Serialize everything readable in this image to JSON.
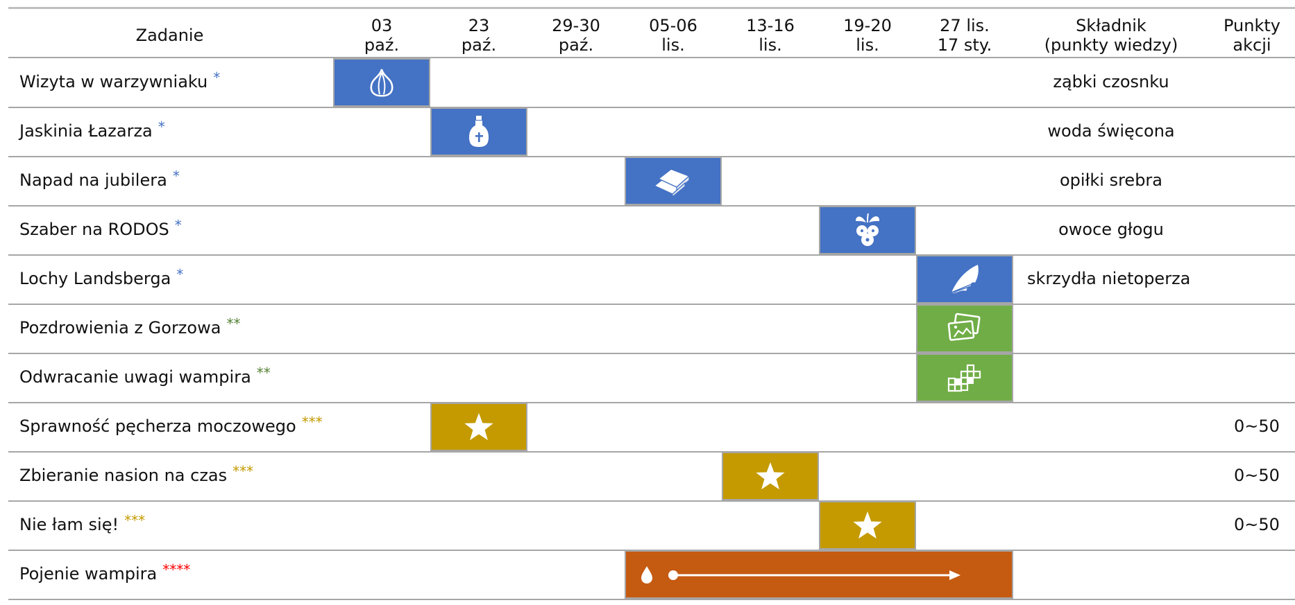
{
  "headers": {
    "task": "Zadanie",
    "dates": [
      {
        "line1": "03",
        "line2": "paź."
      },
      {
        "line1": "23",
        "line2": "paź."
      },
      {
        "line1": "29-30",
        "line2": "paź."
      },
      {
        "line1": "05-06",
        "line2": "lis."
      },
      {
        "line1": "13-16",
        "line2": "lis."
      },
      {
        "line1": "19-20",
        "line2": "lis."
      },
      {
        "line1": "27 lis.",
        "line2": "17 sty."
      }
    ],
    "ingredient": {
      "line1": "Składnik",
      "line2": "(punkty wiedzy)"
    },
    "points": {
      "line1": "Punkty",
      "line2": "akcji"
    }
  },
  "colors": {
    "star1": "#4472c4",
    "star2": "#548235",
    "star3": "#c49a00",
    "star4": "#ff0000",
    "cell_blue": "#4472c4",
    "cell_green": "#70ad47",
    "cell_gold": "#c49a00",
    "cell_orange": "#c55a11"
  },
  "rows": [
    {
      "task": "Wizyta w warzywniaku",
      "stars": "*",
      "level": 1,
      "ingredient": "ząbki czosnku",
      "points": "",
      "icon": "garlic-icon",
      "color": "blue",
      "start_col": 0,
      "end_col": 0
    },
    {
      "task": "Jaskinia Łazarza",
      "stars": "*",
      "level": 1,
      "ingredient": "woda święcona",
      "points": "",
      "icon": "holy-water-bottle-icon",
      "color": "blue",
      "start_col": 1,
      "end_col": 1
    },
    {
      "task": "Napad na jubilera",
      "stars": "*",
      "level": 1,
      "ingredient": "opiłki srebra",
      "points": "",
      "icon": "silver-bars-icon",
      "color": "blue",
      "start_col": 3,
      "end_col": 3
    },
    {
      "task": "Szaber na RODOS",
      "stars": "*",
      "level": 1,
      "ingredient": "owoce głogu",
      "points": "",
      "icon": "hawthorn-berries-icon",
      "color": "blue",
      "start_col": 5,
      "end_col": 5
    },
    {
      "task": "Lochy Landsberga",
      "stars": "*",
      "level": 1,
      "ingredient": "skrzydła nietoperza",
      "points": "",
      "icon": "bat-wing-icon",
      "color": "blue",
      "start_col": 6,
      "end_col": 6
    },
    {
      "task": "Pozdrowienia z Gorzowa",
      "stars": "**",
      "level": 2,
      "ingredient": "",
      "points": "",
      "icon": "postcards-icon",
      "color": "green",
      "start_col": 6,
      "end_col": 6
    },
    {
      "task": "Odwracanie uwagi wampira",
      "stars": "**",
      "level": 2,
      "ingredient": "",
      "points": "",
      "icon": "grid-squares-icon",
      "color": "green",
      "start_col": 6,
      "end_col": 6
    },
    {
      "task": "Sprawność pęcherza moczowego",
      "stars": "***",
      "level": 3,
      "ingredient": "",
      "points": "0~50",
      "icon": "star-icon",
      "color": "gold",
      "start_col": 1,
      "end_col": 1
    },
    {
      "task": "Zbieranie nasion na czas",
      "stars": "***",
      "level": 3,
      "ingredient": "",
      "points": "0~50",
      "icon": "star-icon",
      "color": "gold",
      "start_col": 4,
      "end_col": 4
    },
    {
      "task": "Nie łam się!",
      "stars": "***",
      "level": 3,
      "ingredient": "",
      "points": "0~50",
      "icon": "star-icon",
      "color": "gold",
      "start_col": 5,
      "end_col": 5
    },
    {
      "task": "Pojenie wampira",
      "stars": "****",
      "level": 4,
      "ingredient": "",
      "points": "",
      "icon": "blood-drop-arrow-icon",
      "color": "orange",
      "start_col": 3,
      "end_col": 6
    }
  ]
}
